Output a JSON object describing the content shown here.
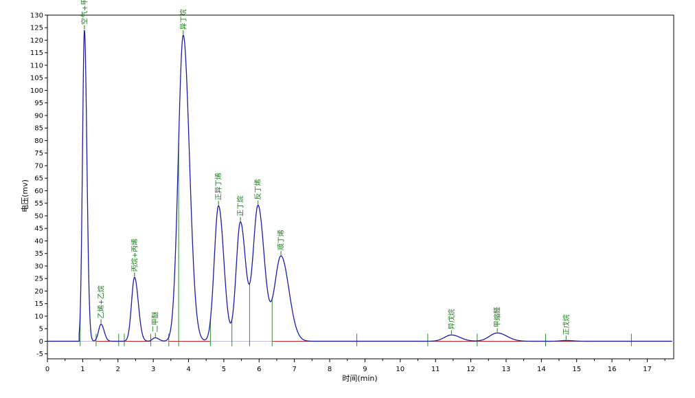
{
  "chart_data": {
    "type": "line",
    "title": "",
    "xlabel": "时间(min)",
    "ylabel": "电压(mv)",
    "xlim": [
      0,
      17.75
    ],
    "ylim": [
      -7,
      130
    ],
    "xticks": [
      0,
      1,
      2,
      3,
      4,
      5,
      6,
      7,
      8,
      9,
      10,
      11,
      12,
      13,
      14,
      15,
      16,
      17
    ],
    "yticks": [
      -5,
      0,
      5,
      10,
      15,
      20,
      25,
      30,
      35,
      40,
      45,
      50,
      55,
      60,
      65,
      70,
      75,
      80,
      85,
      90,
      95,
      100,
      105,
      110,
      115,
      120,
      125,
      130
    ],
    "grid": false,
    "colors": {
      "signal": "#1a1aa8",
      "baseline": "#cc2222",
      "label": "#1a7a1a",
      "marker": "#2d8a2d"
    },
    "peaks": [
      {
        "name": "空气+甲烷",
        "rt": 1.05,
        "height": 124,
        "width": 0.055
      },
      {
        "name": "乙烯+乙烷",
        "rt": 1.52,
        "height": 6.8,
        "width": 0.07
      },
      {
        "name": "丙烷+丙烯",
        "rt": 2.47,
        "height": 25.5,
        "width": 0.085
      },
      {
        "name": "二甲醚",
        "rt": 3.06,
        "height": 1.4,
        "width": 0.08
      },
      {
        "name": "异丁烷",
        "rt": 3.85,
        "height": 122,
        "width": 0.14
      },
      {
        "name": "正异丁烯",
        "rt": 4.85,
        "height": 54,
        "width": 0.12
      },
      {
        "name": "正丁烷",
        "rt": 5.47,
        "height": 47.5,
        "width": 0.12
      },
      {
        "name": "反丁烯",
        "rt": 5.97,
        "height": 54,
        "width": 0.14
      },
      {
        "name": "顺丁烯",
        "rt": 6.62,
        "height": 34,
        "width": 0.18
      },
      {
        "name": "异戊烷",
        "rt": 11.45,
        "height": 2.5,
        "width": 0.2
      },
      {
        "name": "甲缩醛",
        "rt": 12.75,
        "height": 3.3,
        "width": 0.22
      },
      {
        "name": "正戊烷",
        "rt": 14.7,
        "height": 0.3,
        "width": 0.15
      }
    ],
    "integration_markers": [
      0.93,
      1.38,
      2.02,
      2.18,
      2.93,
      3.44,
      3.72,
      4.62,
      5.23,
      5.73,
      6.37,
      8.77,
      10.78,
      12.18,
      14.12,
      16.55
    ],
    "baseline_segments": [
      [
        1.38,
        1.78
      ],
      [
        2.18,
        2.93
      ],
      [
        3.44,
        4.62
      ],
      [
        6.37,
        10.0
      ],
      [
        10.78,
        13.5
      ],
      [
        14.12,
        16.55
      ]
    ]
  }
}
